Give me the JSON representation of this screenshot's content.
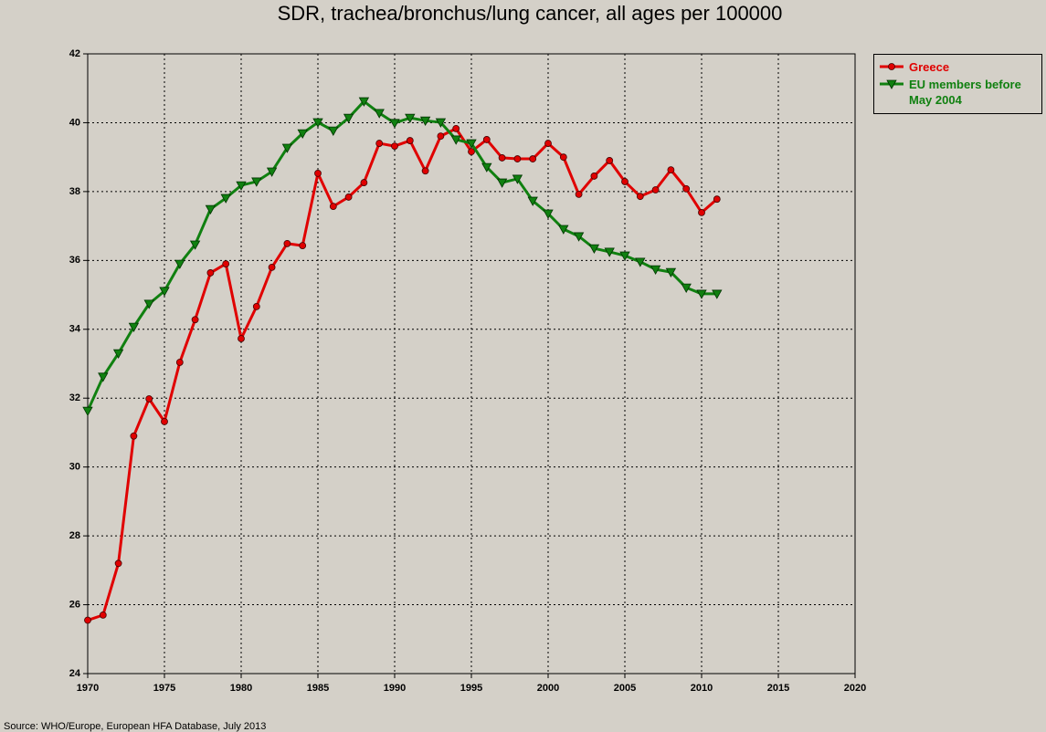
{
  "chart_data": {
    "type": "line",
    "title": "SDR, trachea/bronchus/lung cancer, all ages per 100000",
    "source": "Source: WHO/Europe, European HFA Database, July 2013",
    "x": [
      1970,
      1971,
      1972,
      1973,
      1974,
      1975,
      1976,
      1977,
      1978,
      1979,
      1980,
      1981,
      1982,
      1983,
      1984,
      1985,
      1986,
      1987,
      1988,
      1989,
      1990,
      1991,
      1992,
      1993,
      1994,
      1995,
      1996,
      1997,
      1998,
      1999,
      2000,
      2001,
      2002,
      2003,
      2004,
      2005,
      2006,
      2007,
      2008,
      2009,
      2010,
      2011
    ],
    "series": [
      {
        "name": "Greece",
        "color": "#e00000",
        "marker": "circle",
        "values": [
          25.55,
          25.7,
          27.2,
          30.9,
          31.98,
          31.32,
          33.04,
          34.28,
          35.64,
          35.9,
          33.73,
          34.66,
          35.8,
          36.49,
          36.43,
          38.53,
          37.57,
          37.84,
          38.26,
          39.4,
          39.32,
          39.48,
          38.6,
          39.61,
          39.83,
          39.16,
          39.51,
          38.98,
          38.95,
          38.95,
          39.4,
          39.0,
          37.92,
          38.45,
          38.9,
          38.29,
          37.86,
          38.05,
          38.63,
          38.08,
          37.39,
          37.78
        ]
      },
      {
        "name": "EU members before May 2004",
        "color": "#108010",
        "marker": "triangle-down",
        "values": [
          31.63,
          32.62,
          33.3,
          34.07,
          34.74,
          35.11,
          35.9,
          36.46,
          37.49,
          37.81,
          38.18,
          38.29,
          38.58,
          39.27,
          39.69,
          40.01,
          39.77,
          40.14,
          40.62,
          40.28,
          39.99,
          40.14,
          40.06,
          40.01,
          39.51,
          39.4,
          38.71,
          38.26,
          38.37,
          37.73,
          37.36,
          36.91,
          36.7,
          36.35,
          36.25,
          36.14,
          35.96,
          35.74,
          35.66,
          35.21,
          35.03,
          35.03
        ]
      }
    ],
    "xlim": [
      1970,
      2020
    ],
    "xticks": [
      1970,
      1975,
      1980,
      1985,
      1990,
      1995,
      2000,
      2005,
      2010,
      2015,
      2020
    ],
    "ylim": [
      24,
      42
    ],
    "yticks": [
      24,
      26,
      28,
      30,
      32,
      34,
      36,
      38,
      40,
      42
    ],
    "grid": true,
    "legend": "right"
  }
}
